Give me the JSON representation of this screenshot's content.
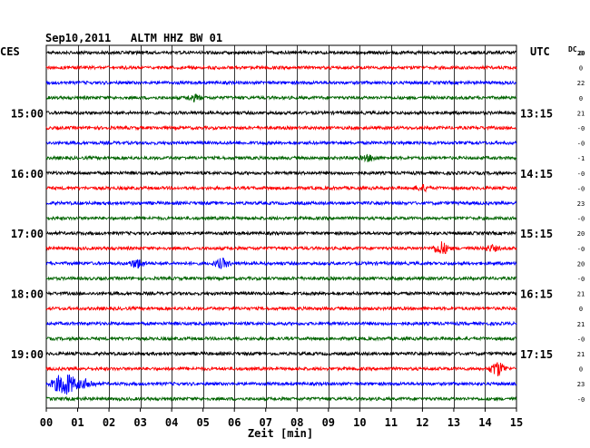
{
  "chart_data": {
    "type": "line",
    "title": "Sep10,2011   ALTM HHZ BW 01",
    "left_zone_label": "CES",
    "right_zone_label": "UTC",
    "dc_label": "DC",
    "dc_sublabel": "20",
    "xlabel": "Zeit [min]",
    "xlim": [
      0,
      15
    ],
    "x_ticks": [
      "00",
      "01",
      "02",
      "03",
      "04",
      "05",
      "06",
      "07",
      "08",
      "09",
      "10",
      "11",
      "12",
      "13",
      "14",
      "15"
    ],
    "left_hour_labels": [
      "15:00",
      "16:00",
      "17:00",
      "18:00",
      "19:00"
    ],
    "right_hour_labels": [
      "13:15",
      "14:15",
      "15:15",
      "16:15",
      "17:15"
    ],
    "grid": true,
    "trace_colors": [
      "#000000",
      "#ff0000",
      "#0000ff",
      "#006400"
    ],
    "series": [
      {
        "index": 0,
        "color": "#000000",
        "dc_offset": "0",
        "events": []
      },
      {
        "index": 1,
        "color": "#ff0000",
        "dc_offset": "0",
        "events": []
      },
      {
        "index": 2,
        "color": "#0000ff",
        "dc_offset": "22",
        "events": []
      },
      {
        "index": 3,
        "color": "#006400",
        "dc_offset": "0",
        "events": [
          {
            "minute": 4.7,
            "amplitude": 3
          }
        ]
      },
      {
        "index": 4,
        "color": "#000000",
        "dc_offset": "21",
        "events": []
      },
      {
        "index": 5,
        "color": "#ff0000",
        "dc_offset": "-0",
        "events": []
      },
      {
        "index": 6,
        "color": "#0000ff",
        "dc_offset": "-0",
        "events": []
      },
      {
        "index": 7,
        "color": "#006400",
        "dc_offset": "-1",
        "events": [
          {
            "minute": 10.3,
            "amplitude": 3
          }
        ]
      },
      {
        "index": 8,
        "color": "#000000",
        "dc_offset": "-0",
        "events": []
      },
      {
        "index": 9,
        "color": "#ff0000",
        "dc_offset": "-0",
        "events": [
          {
            "minute": 12.0,
            "amplitude": 3
          }
        ]
      },
      {
        "index": 10,
        "color": "#0000ff",
        "dc_offset": "23",
        "events": []
      },
      {
        "index": 11,
        "color": "#006400",
        "dc_offset": "-0",
        "events": []
      },
      {
        "index": 12,
        "color": "#000000",
        "dc_offset": "20",
        "events": []
      },
      {
        "index": 13,
        "color": "#ff0000",
        "dc_offset": "-0",
        "events": [
          {
            "minute": 12.6,
            "amplitude": 7
          },
          {
            "minute": 14.2,
            "amplitude": 3
          }
        ]
      },
      {
        "index": 14,
        "color": "#0000ff",
        "dc_offset": "20",
        "events": [
          {
            "minute": 2.9,
            "amplitude": 5
          },
          {
            "minute": 5.6,
            "amplitude": 5
          }
        ]
      },
      {
        "index": 15,
        "color": "#006400",
        "dc_offset": "-0",
        "events": []
      },
      {
        "index": 16,
        "color": "#000000",
        "dc_offset": "21",
        "events": []
      },
      {
        "index": 17,
        "color": "#ff0000",
        "dc_offset": "0",
        "events": []
      },
      {
        "index": 18,
        "color": "#0000ff",
        "dc_offset": "21",
        "events": []
      },
      {
        "index": 19,
        "color": "#006400",
        "dc_offset": "-0",
        "events": []
      },
      {
        "index": 20,
        "color": "#000000",
        "dc_offset": "21",
        "events": []
      },
      {
        "index": 21,
        "color": "#ff0000",
        "dc_offset": "0",
        "events": [
          {
            "minute": 14.4,
            "amplitude": 8
          }
        ]
      },
      {
        "index": 22,
        "color": "#0000ff",
        "dc_offset": "23",
        "events": [
          {
            "minute": 0.6,
            "amplitude": 13
          },
          {
            "minute": 1.3,
            "amplitude": 5
          }
        ]
      },
      {
        "index": 23,
        "color": "#006400",
        "dc_offset": "-0",
        "events": []
      }
    ]
  }
}
